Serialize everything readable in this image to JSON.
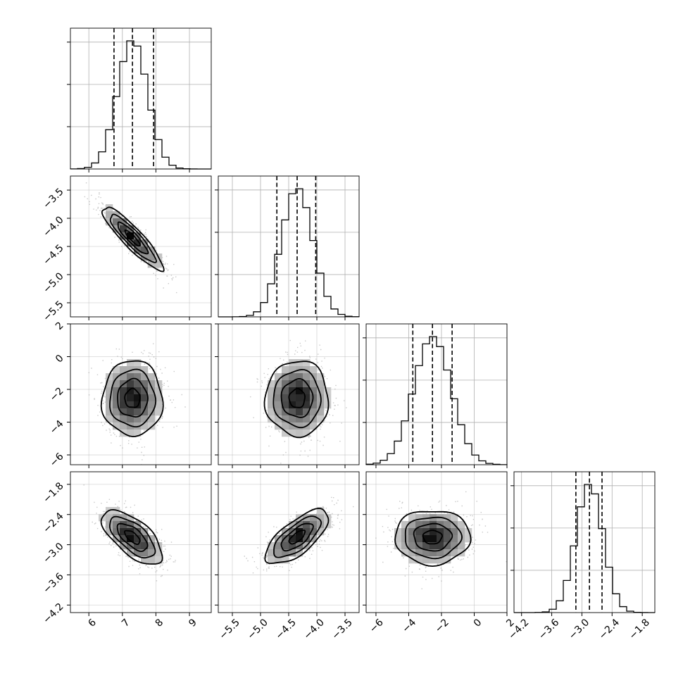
{
  "chart_data": {
    "type": "corner",
    "title": "",
    "grid": true,
    "params": [
      {
        "ticks": [
          6,
          7,
          8,
          9
        ],
        "tick_labels": [
          "6",
          "7",
          "8",
          "9"
        ],
        "range": [
          5.45,
          9.65
        ],
        "mean": 7.3,
        "sd": 0.45,
        "quantiles": [
          6.75,
          7.3,
          7.93
        ]
      },
      {
        "ticks": [
          -5.5,
          -5.0,
          -4.5,
          -4.0,
          -3.5
        ],
        "tick_labels": [
          "−5.5",
          "−5.0",
          "−4.5",
          "−4.0",
          "−3.5"
        ],
        "range": [
          -5.75,
          -3.25
        ],
        "mean": -4.35,
        "sd": 0.28,
        "quantiles": [
          -4.71,
          -4.35,
          -4.02
        ]
      },
      {
        "ticks": [
          -6,
          -4,
          -2,
          0,
          2
        ],
        "tick_labels": [
          "−6",
          "−4",
          "−2",
          "0",
          "2"
        ],
        "range": [
          -6.6,
          2.0
        ],
        "mean": -2.55,
        "sd": 1.15,
        "quantiles": [
          -3.75,
          -2.55,
          -1.35
        ]
      },
      {
        "ticks": [
          -4.2,
          -3.6,
          -3.0,
          -2.4,
          -1.8
        ],
        "tick_labels": [
          "−4.2",
          "−3.6",
          "−3.0",
          "−2.4",
          "−1.8"
        ],
        "range": [
          -4.35,
          -1.55
        ],
        "mean": -2.85,
        "sd": 0.27,
        "quantiles": [
          -3.12,
          -2.85,
          -2.6
        ]
      }
    ],
    "correlations": [
      {
        "row": 1,
        "col": 0,
        "rho": -0.9
      },
      {
        "row": 2,
        "col": 0,
        "rho": 0.0
      },
      {
        "row": 2,
        "col": 1,
        "rho": 0.0
      },
      {
        "row": 3,
        "col": 0,
        "rho": -0.65
      },
      {
        "row": 3,
        "col": 1,
        "rho": 0.7
      },
      {
        "row": 3,
        "col": 2,
        "rho": 0.0
      }
    ],
    "colors": {
      "hist": "#000000",
      "points": "#9a9a9a",
      "grid": "#b0b0b0"
    }
  }
}
